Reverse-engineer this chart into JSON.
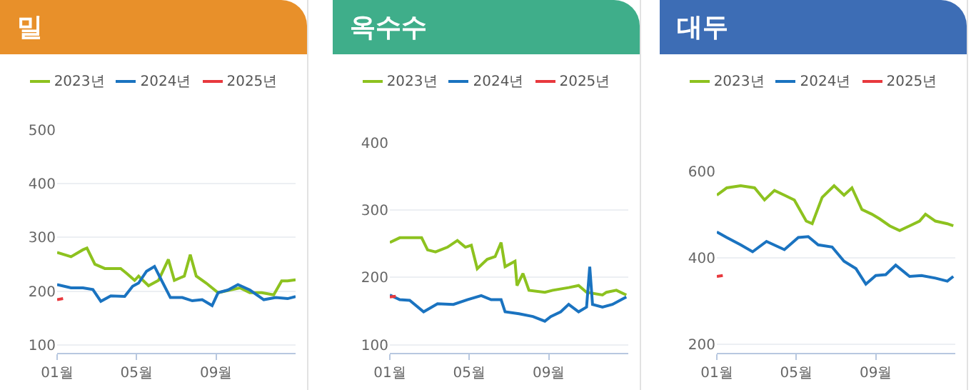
{
  "chart_data": [
    {
      "type": "line",
      "title": "밀",
      "xlim": [
        1,
        13
      ],
      "xticks": [
        {
          "value": 1,
          "label": "01월"
        },
        {
          "value": 5,
          "label": "05월"
        },
        {
          "value": 9,
          "label": "09월"
        }
      ],
      "ylim": [
        85,
        500
      ],
      "yticks": [
        100,
        200,
        300,
        400,
        500
      ],
      "grid": "y",
      "legend": "top",
      "marker": "none",
      "series": [
        {
          "name": "2023년",
          "color": "#8dc21f",
          "x": [
            1,
            1.7,
            2.3,
            2.5,
            2.9,
            3.4,
            4.2,
            4.5,
            4.9,
            5.1,
            5.6,
            6.1,
            6.6,
            6.9,
            7.4,
            7.7,
            8,
            8.5,
            9.1,
            9.7,
            10.2,
            10.7,
            11.3,
            11.9,
            12.3,
            12.6,
            13
          ],
          "values": [
            272,
            264,
            277,
            280,
            250,
            242,
            242,
            233,
            220,
            228,
            210,
            220,
            259,
            220,
            228,
            268,
            228,
            215,
            197,
            202,
            206,
            197,
            197,
            193,
            219,
            219,
            221
          ]
        },
        {
          "name": "2024년",
          "color": "#1a73c0",
          "x": [
            1,
            1.7,
            2.3,
            2.8,
            3.2,
            3.7,
            4.4,
            4.8,
            5.1,
            5.5,
            5.9,
            6.2,
            6.7,
            7.3,
            7.8,
            8.3,
            8.8,
            9.1,
            9.6,
            10.1,
            10.7,
            11.4,
            12,
            12.6,
            13
          ],
          "values": [
            212,
            206,
            206,
            203,
            181,
            191,
            190,
            209,
            215,
            237,
            246,
            224,
            188,
            188,
            182,
            184,
            173,
            197,
            202,
            212,
            202,
            184,
            188,
            186,
            190
          ]
        },
        {
          "name": "2025년",
          "color": "#e8383d",
          "x": [
            1,
            1.3
          ],
          "values": [
            184,
            186
          ]
        }
      ]
    },
    {
      "type": "line",
      "title": "옥수수",
      "xlim": [
        1,
        13
      ],
      "xticks": [
        {
          "value": 1,
          "label": "01월"
        },
        {
          "value": 5,
          "label": "05월"
        },
        {
          "value": 9,
          "label": "09월"
        }
      ],
      "ylim": [
        88,
        400
      ],
      "yticks": [
        100,
        200,
        300,
        400
      ],
      "grid": "y",
      "legend": "top",
      "marker": "none",
      "series": [
        {
          "name": "2023년",
          "color": "#8dc21f",
          "x": [
            1,
            1.5,
            2,
            2.6,
            2.9,
            3.3,
            3.9,
            4.4,
            4.8,
            5.1,
            5.4,
            5.9,
            6.3,
            6.6,
            6.8,
            7.3,
            7.4,
            7.7,
            8,
            8.8,
            9.2,
            10,
            10.5,
            10.9,
            11.7,
            11.9,
            12.4,
            12.9
          ],
          "values": [
            252,
            259,
            259,
            259,
            241,
            238,
            245,
            255,
            245,
            248,
            213,
            227,
            231,
            252,
            216,
            224,
            188,
            206,
            181,
            178,
            181,
            185,
            188,
            178,
            174,
            178,
            181,
            174
          ]
        },
        {
          "name": "2024년",
          "color": "#1a73c0",
          "x": [
            1,
            1.5,
            2,
            2.7,
            3.4,
            4.2,
            4.9,
            5.6,
            6.1,
            6.6,
            6.8,
            7.5,
            8.2,
            8.8,
            9.1,
            9.6,
            10,
            10.5,
            10.9,
            11.06,
            11.2,
            11.7,
            12.2,
            12.9
          ],
          "values": [
            174,
            167,
            166,
            149,
            161,
            160,
            167,
            173,
            167,
            167,
            149,
            146,
            142,
            135,
            142,
            149,
            160,
            149,
            156,
            216,
            160,
            156,
            160,
            171
          ]
        },
        {
          "name": "2025년",
          "color": "#e8383d",
          "x": [
            1,
            1.3
          ],
          "values": [
            171,
            172
          ]
        }
      ]
    },
    {
      "type": "line",
      "title": "대두",
      "xlim": [
        1,
        13
      ],
      "xticks": [
        {
          "value": 1,
          "label": "01월"
        },
        {
          "value": 5,
          "label": "05월"
        },
        {
          "value": 9,
          "label": "09월"
        }
      ],
      "ylim": [
        180,
        600
      ],
      "yticks": [
        200,
        400,
        600
      ],
      "grid": "y",
      "legend": "top",
      "marker": "none",
      "series": [
        {
          "name": "2023년",
          "color": "#8dc21f",
          "x": [
            1,
            1.5,
            2.2,
            2.9,
            3.4,
            3.9,
            4.4,
            4.9,
            5.5,
            5.8,
            6.3,
            6.9,
            7.4,
            7.8,
            8.3,
            8.8,
            9.2,
            9.7,
            10.2,
            10.7,
            11.2,
            11.5,
            12,
            12.6,
            12.9
          ],
          "values": [
            545,
            562,
            567,
            562,
            534,
            556,
            545,
            534,
            485,
            479,
            540,
            567,
            545,
            562,
            512,
            501,
            490,
            474,
            463,
            474,
            485,
            501,
            485,
            479,
            474
          ]
        },
        {
          "name": "2024년",
          "color": "#1a73c0",
          "x": [
            1,
            1.5,
            2.2,
            2.8,
            3.5,
            4.4,
            5.1,
            5.6,
            6.1,
            6.8,
            7.4,
            8,
            8.5,
            9,
            9.5,
            10,
            10.7,
            11.3,
            12,
            12.6,
            12.9
          ],
          "values": [
            460,
            447,
            430,
            414,
            438,
            419,
            447,
            449,
            430,
            425,
            392,
            375,
            339,
            359,
            361,
            383,
            357,
            359,
            353,
            346,
            357
          ]
        },
        {
          "name": "2025년",
          "color": "#e8383d",
          "x": [
            1,
            1.3
          ],
          "values": [
            357,
            359
          ]
        }
      ]
    }
  ]
}
